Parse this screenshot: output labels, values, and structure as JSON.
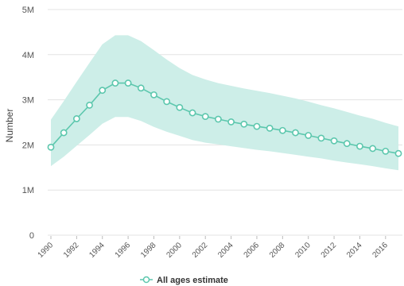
{
  "chart_data": {
    "type": "line",
    "ylabel": "Number",
    "xlabel": "",
    "title": "",
    "ylim": [
      0,
      5000000
    ],
    "y_ticks": [
      0,
      1000000,
      2000000,
      3000000,
      4000000,
      5000000
    ],
    "y_tick_labels": [
      "0",
      "1M",
      "2M",
      "3M",
      "4M",
      "5M"
    ],
    "x_ticks": [
      1990,
      1992,
      1994,
      1996,
      1998,
      2000,
      2002,
      2004,
      2006,
      2008,
      2010,
      2012,
      2014,
      2016
    ],
    "x_tick_labels": [
      "1990",
      "1992",
      "1994",
      "1996",
      "1998",
      "2000",
      "2002",
      "2004",
      "2006",
      "2008",
      "2010",
      "2012",
      "2014",
      "2016"
    ],
    "xlim": [
      1990,
      2017
    ],
    "grid": true,
    "legend_position": "bottom",
    "x": [
      1990,
      1991,
      1992,
      1993,
      1994,
      1995,
      1996,
      1997,
      1998,
      1999,
      2000,
      2001,
      2002,
      2003,
      2004,
      2005,
      2006,
      2007,
      2008,
      2009,
      2010,
      2011,
      2012,
      2013,
      2014,
      2015,
      2016,
      2017
    ],
    "series": [
      {
        "name": "All ages estimate",
        "color": "#5cc7ad",
        "values": [
          1950000,
          2270000,
          2580000,
          2880000,
          3210000,
          3370000,
          3370000,
          3260000,
          3110000,
          2960000,
          2830000,
          2710000,
          2630000,
          2570000,
          2510000,
          2460000,
          2410000,
          2370000,
          2320000,
          2270000,
          2210000,
          2150000,
          2090000,
          2030000,
          1970000,
          1920000,
          1860000,
          1810000
        ],
        "lower": [
          1530000,
          1740000,
          1980000,
          2220000,
          2470000,
          2620000,
          2620000,
          2530000,
          2400000,
          2290000,
          2200000,
          2110000,
          2050000,
          2010000,
          1970000,
          1930000,
          1890000,
          1860000,
          1820000,
          1780000,
          1740000,
          1700000,
          1650000,
          1610000,
          1570000,
          1530000,
          1480000,
          1440000
        ],
        "upper": [
          2560000,
          2970000,
          3400000,
          3820000,
          4230000,
          4430000,
          4430000,
          4300000,
          4100000,
          3890000,
          3700000,
          3550000,
          3450000,
          3370000,
          3310000,
          3250000,
          3200000,
          3150000,
          3090000,
          3030000,
          2960000,
          2880000,
          2810000,
          2730000,
          2650000,
          2580000,
          2490000,
          2410000
        ]
      }
    ]
  },
  "colors": {
    "line": "#5cc7ad",
    "band": "#cdeee8",
    "grid": "#e3e3e3"
  }
}
